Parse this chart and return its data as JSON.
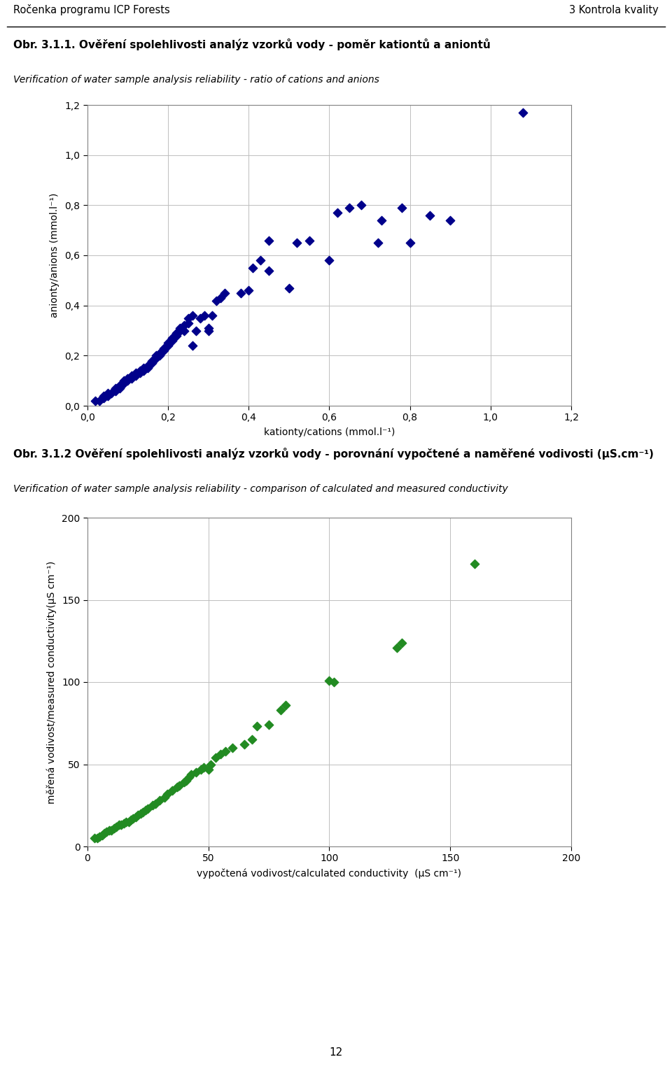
{
  "page_header_left": "Ročenka programu ICP Forests",
  "page_header_right": "3 Kontrola kvality",
  "page_number": "12",
  "plot1": {
    "title_bold": "Obr. 3.1.1. Ověření spolehlivosti analýz vzorků vody - poměr kationtů a aniontů",
    "title_italic": "Verification of water sample analysis reliability - ratio of cations and anions",
    "xlabel": "kationty/cations (mmol.l⁻¹)",
    "ylabel": "anionty/anions (mmol.l⁻¹)",
    "xlim": [
      0.0,
      1.2
    ],
    "ylim": [
      0.0,
      1.2
    ],
    "xticks": [
      0.0,
      0.2,
      0.4,
      0.6,
      0.8,
      1.0,
      1.2
    ],
    "yticks": [
      0.0,
      0.2,
      0.4,
      0.6,
      0.8,
      1.0,
      1.2
    ],
    "xtick_labels": [
      "0,0",
      "0,2",
      "0,4",
      "0,6",
      "0,8",
      "1,0",
      "1,2"
    ],
    "ytick_labels": [
      "0,0",
      "0,2",
      "0,4",
      "0,6",
      "0,8",
      "1,0",
      "1,2"
    ],
    "color": "#00008B",
    "marker": "D",
    "x": [
      0.02,
      0.03,
      0.04,
      0.04,
      0.05,
      0.05,
      0.06,
      0.07,
      0.07,
      0.08,
      0.08,
      0.09,
      0.09,
      0.1,
      0.1,
      0.11,
      0.11,
      0.12,
      0.12,
      0.13,
      0.13,
      0.14,
      0.14,
      0.15,
      0.15,
      0.16,
      0.16,
      0.17,
      0.17,
      0.18,
      0.18,
      0.19,
      0.19,
      0.2,
      0.2,
      0.21,
      0.21,
      0.22,
      0.22,
      0.23,
      0.23,
      0.24,
      0.24,
      0.25,
      0.25,
      0.26,
      0.26,
      0.27,
      0.28,
      0.29,
      0.3,
      0.3,
      0.31,
      0.32,
      0.33,
      0.34,
      0.38,
      0.4,
      0.41,
      0.43,
      0.45,
      0.45,
      0.5,
      0.52,
      0.55,
      0.6,
      0.62,
      0.65,
      0.68,
      0.72,
      0.73,
      0.78,
      0.8,
      0.85,
      0.9,
      1.08
    ],
    "y": [
      0.02,
      0.02,
      0.03,
      0.04,
      0.04,
      0.05,
      0.05,
      0.06,
      0.07,
      0.07,
      0.08,
      0.09,
      0.1,
      0.1,
      0.11,
      0.11,
      0.12,
      0.12,
      0.13,
      0.13,
      0.14,
      0.14,
      0.15,
      0.15,
      0.16,
      0.17,
      0.18,
      0.19,
      0.2,
      0.2,
      0.21,
      0.22,
      0.23,
      0.24,
      0.25,
      0.26,
      0.27,
      0.28,
      0.29,
      0.3,
      0.31,
      0.3,
      0.32,
      0.33,
      0.35,
      0.36,
      0.24,
      0.3,
      0.35,
      0.36,
      0.3,
      0.31,
      0.36,
      0.42,
      0.43,
      0.45,
      0.45,
      0.46,
      0.55,
      0.58,
      0.66,
      0.54,
      0.47,
      0.65,
      0.66,
      0.58,
      0.77,
      0.79,
      0.8,
      0.65,
      0.74,
      0.79,
      0.65,
      0.76,
      0.74,
      1.17
    ]
  },
  "plot2": {
    "title_bold": "Obr. 3.1.2 Ověření spolehlivosti analýz vzorků vody - porovnání vypočtené a naměřené vodivosti (μS.cm⁻¹)",
    "title_italic": "Verification of water sample analysis reliability - comparison of calculated and measured conductivity",
    "xlabel": "vypočtená vodivost/calculated conductivity  (μS cm⁻¹)",
    "ylabel": "měřená vodivost/measured conductivity(μS cm⁻¹)",
    "xlim": [
      0,
      200
    ],
    "ylim": [
      0,
      200
    ],
    "xticks": [
      0,
      50,
      100,
      150,
      200
    ],
    "yticks": [
      0,
      50,
      100,
      150,
      200
    ],
    "color": "#228B22",
    "marker": "D",
    "x": [
      3,
      4,
      5,
      6,
      7,
      8,
      9,
      10,
      11,
      12,
      13,
      14,
      15,
      16,
      17,
      18,
      19,
      20,
      21,
      22,
      23,
      24,
      25,
      27,
      28,
      30,
      32,
      33,
      35,
      37,
      38,
      40,
      41,
      42,
      43,
      45,
      47,
      48,
      50,
      51,
      53,
      55,
      57,
      60,
      65,
      68,
      70,
      75,
      80,
      82,
      100,
      102,
      128,
      130,
      160
    ],
    "y": [
      5,
      5,
      6,
      7,
      8,
      9,
      10,
      10,
      11,
      12,
      13,
      13,
      14,
      15,
      15,
      16,
      17,
      18,
      19,
      20,
      21,
      22,
      23,
      25,
      26,
      28,
      30,
      32,
      34,
      36,
      37,
      39,
      40,
      42,
      44,
      45,
      47,
      48,
      47,
      50,
      54,
      56,
      58,
      60,
      62,
      65,
      73,
      74,
      83,
      86,
      101,
      100,
      121,
      124,
      172
    ]
  }
}
